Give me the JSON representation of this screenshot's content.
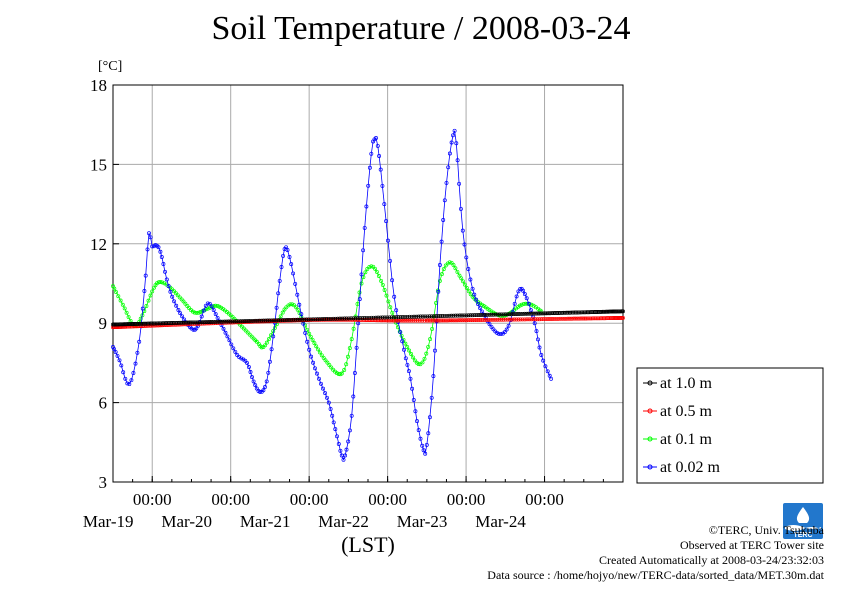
{
  "title": "Soil Temperature / 2008-03-24",
  "footer": {
    "copyright": "©TERC, Univ. Tsukuba",
    "observed": "Observed at TERC Tower site",
    "created": "Created Automatically at 2008-03-24/23:32:03",
    "source": "Data source : /home/hojyo/new/TERC-data/sorted_data/MET.30m.dat"
  },
  "logo_text": "TERC",
  "chart_data": {
    "type": "line",
    "title": "Soil Temperature / 2008-03-24",
    "xlabel": "(LST)",
    "ylabel": "[°C]",
    "ylim": [
      3,
      18
    ],
    "yticks": [
      3,
      6,
      9,
      12,
      15,
      18
    ],
    "xlim": [
      "2008-03-18 12:00",
      "2008-03-24 24:00"
    ],
    "xticks": [
      {
        "x": "2008-03-19 00:00",
        "time": "00:00",
        "date": "Mar-19"
      },
      {
        "x": "2008-03-20 00:00",
        "time": "00:00",
        "date": "Mar-20"
      },
      {
        "x": "2008-03-21 00:00",
        "time": "00:00",
        "date": "Mar-21"
      },
      {
        "x": "2008-03-22 00:00",
        "time": "00:00",
        "date": "Mar-22"
      },
      {
        "x": "2008-03-23 00:00",
        "time": "00:00",
        "date": "Mar-23"
      },
      {
        "x": "2008-03-24 00:00",
        "time": "00:00",
        "date": "Mar-24"
      }
    ],
    "grid": true,
    "legend_position": "right",
    "series": [
      {
        "name": "at 1.0 m",
        "color": "#000000",
        "points": [
          [
            "2008-03-18 12:00",
            8.95
          ],
          [
            "2008-03-24 24:00",
            9.45
          ]
        ]
      },
      {
        "name": "at 0.5 m",
        "color": "#ff0000",
        "points": [
          [
            "2008-03-18 12:00",
            8.85
          ],
          [
            "2008-03-21 00:00",
            9.12
          ],
          [
            "2008-03-22 12:00",
            9.1
          ],
          [
            "2008-03-24 24:00",
            9.2
          ]
        ]
      },
      {
        "name": "at 0.1 m",
        "color": "#00ff00",
        "points": [
          [
            "2008-03-18 12:00",
            10.4
          ],
          [
            "2008-03-18 15:00",
            9.7
          ],
          [
            "2008-03-18 18:30",
            8.9
          ],
          [
            "2008-03-18 21:00",
            9.3
          ],
          [
            "2008-03-19 00:00",
            10.2
          ],
          [
            "2008-03-19 02:00",
            10.55
          ],
          [
            "2008-03-19 05:00",
            10.4
          ],
          [
            "2008-03-19 09:00",
            9.9
          ],
          [
            "2008-03-19 13:00",
            9.4
          ],
          [
            "2008-03-19 17:00",
            9.55
          ],
          [
            "2008-03-19 20:00",
            9.65
          ],
          [
            "2008-03-20 00:00",
            9.3
          ],
          [
            "2008-03-20 04:00",
            8.8
          ],
          [
            "2008-03-20 08:00",
            8.3
          ],
          [
            "2008-03-20 10:00",
            8.1
          ],
          [
            "2008-03-20 13:00",
            8.7
          ],
          [
            "2008-03-20 17:00",
            9.6
          ],
          [
            "2008-03-20 20:00",
            9.6
          ],
          [
            "2008-03-21 00:00",
            8.6
          ],
          [
            "2008-03-21 05:00",
            7.6
          ],
          [
            "2008-03-21 10:00",
            7.1
          ],
          [
            "2008-03-21 13:00",
            8.4
          ],
          [
            "2008-03-21 16:00",
            10.5
          ],
          [
            "2008-03-21 19:00",
            11.15
          ],
          [
            "2008-03-21 22:00",
            10.6
          ],
          [
            "2008-03-22 02:00",
            9.2
          ],
          [
            "2008-03-22 06:00",
            8.1
          ],
          [
            "2008-03-22 10:00",
            7.45
          ],
          [
            "2008-03-22 13:00",
            8.4
          ],
          [
            "2008-03-22 16:00",
            10.6
          ],
          [
            "2008-03-22 19:00",
            11.3
          ],
          [
            "2008-03-22 22:00",
            10.8
          ],
          [
            "2008-03-23 02:00",
            10.0
          ],
          [
            "2008-03-23 06:00",
            9.6
          ],
          [
            "2008-03-23 10:00",
            9.3
          ],
          [
            "2008-03-23 13:00",
            9.35
          ],
          [
            "2008-03-23 17:00",
            9.7
          ],
          [
            "2008-03-23 20:00",
            9.7
          ],
          [
            "2008-03-23 23:00",
            9.45
          ]
        ]
      },
      {
        "name": "at 0.02 m",
        "color": "#0000ff",
        "points": [
          [
            "2008-03-18 12:00",
            8.1
          ],
          [
            "2008-03-18 14:00",
            7.6
          ],
          [
            "2008-03-18 17:00",
            6.7
          ],
          [
            "2008-03-18 20:00",
            8.3
          ],
          [
            "2008-03-18 22:00",
            10.8
          ],
          [
            "2008-03-18 23:00",
            12.4
          ],
          [
            "2008-03-19 00:00",
            11.9
          ],
          [
            "2008-03-19 01:00",
            11.95
          ],
          [
            "2008-03-19 02:30",
            11.7
          ],
          [
            "2008-03-19 05:00",
            10.4
          ],
          [
            "2008-03-19 08:00",
            9.5
          ],
          [
            "2008-03-19 12:00",
            8.8
          ],
          [
            "2008-03-19 14:00",
            8.9
          ],
          [
            "2008-03-19 17:00",
            9.75
          ],
          [
            "2008-03-19 20:00",
            9.2
          ],
          [
            "2008-03-19 23:00",
            8.5
          ],
          [
            "2008-03-20 02:00",
            7.8
          ],
          [
            "2008-03-20 05:00",
            7.5
          ],
          [
            "2008-03-20 07:00",
            6.8
          ],
          [
            "2008-03-20 09:00",
            6.4
          ],
          [
            "2008-03-20 11:00",
            6.8
          ],
          [
            "2008-03-20 13:00",
            8.5
          ],
          [
            "2008-03-20 15:00",
            10.6
          ],
          [
            "2008-03-20 16:30",
            11.8
          ],
          [
            "2008-03-20 18:00",
            11.5
          ],
          [
            "2008-03-20 21:00",
            9.7
          ],
          [
            "2008-03-21 00:00",
            8.0
          ],
          [
            "2008-03-21 03:00",
            6.9
          ],
          [
            "2008-03-21 06:00",
            6.0
          ],
          [
            "2008-03-21 08:00",
            5.0
          ],
          [
            "2008-03-21 10:00",
            4.0
          ],
          [
            "2008-03-21 11:00",
            4.0
          ],
          [
            "2008-03-21 13:00",
            5.5
          ],
          [
            "2008-03-21 15:00",
            9.0
          ],
          [
            "2008-03-21 17:00",
            12.6
          ],
          [
            "2008-03-21 19:00",
            15.4
          ],
          [
            "2008-03-21 20:00",
            15.95
          ],
          [
            "2008-03-21 21:00",
            15.7
          ],
          [
            "2008-03-21 23:00",
            13.5
          ],
          [
            "2008-03-22 02:00",
            10.0
          ],
          [
            "2008-03-22 05:00",
            8.0
          ],
          [
            "2008-03-22 07:00",
            6.9
          ],
          [
            "2008-03-22 09:00",
            5.3
          ],
          [
            "2008-03-22 11:00",
            4.2
          ],
          [
            "2008-03-22 12:00",
            4.4
          ],
          [
            "2008-03-22 14:00",
            7.0
          ],
          [
            "2008-03-22 16:00",
            11.2
          ],
          [
            "2008-03-22 18:00",
            14.3
          ],
          [
            "2008-03-22 20:00",
            16.1
          ],
          [
            "2008-03-22 21:00",
            15.8
          ],
          [
            "2008-03-22 23:00",
            12.5
          ],
          [
            "2008-03-23 02:00",
            10.3
          ],
          [
            "2008-03-23 06:00",
            9.2
          ],
          [
            "2008-03-23 10:00",
            8.6
          ],
          [
            "2008-03-23 13:00",
            8.9
          ],
          [
            "2008-03-23 16:00",
            10.2
          ],
          [
            "2008-03-23 18:00",
            10.1
          ],
          [
            "2008-03-23 21:00",
            9.0
          ],
          [
            "2008-03-23 23:00",
            7.8
          ],
          [
            "2008-03-24 02:00",
            6.9
          ]
        ]
      }
    ]
  }
}
